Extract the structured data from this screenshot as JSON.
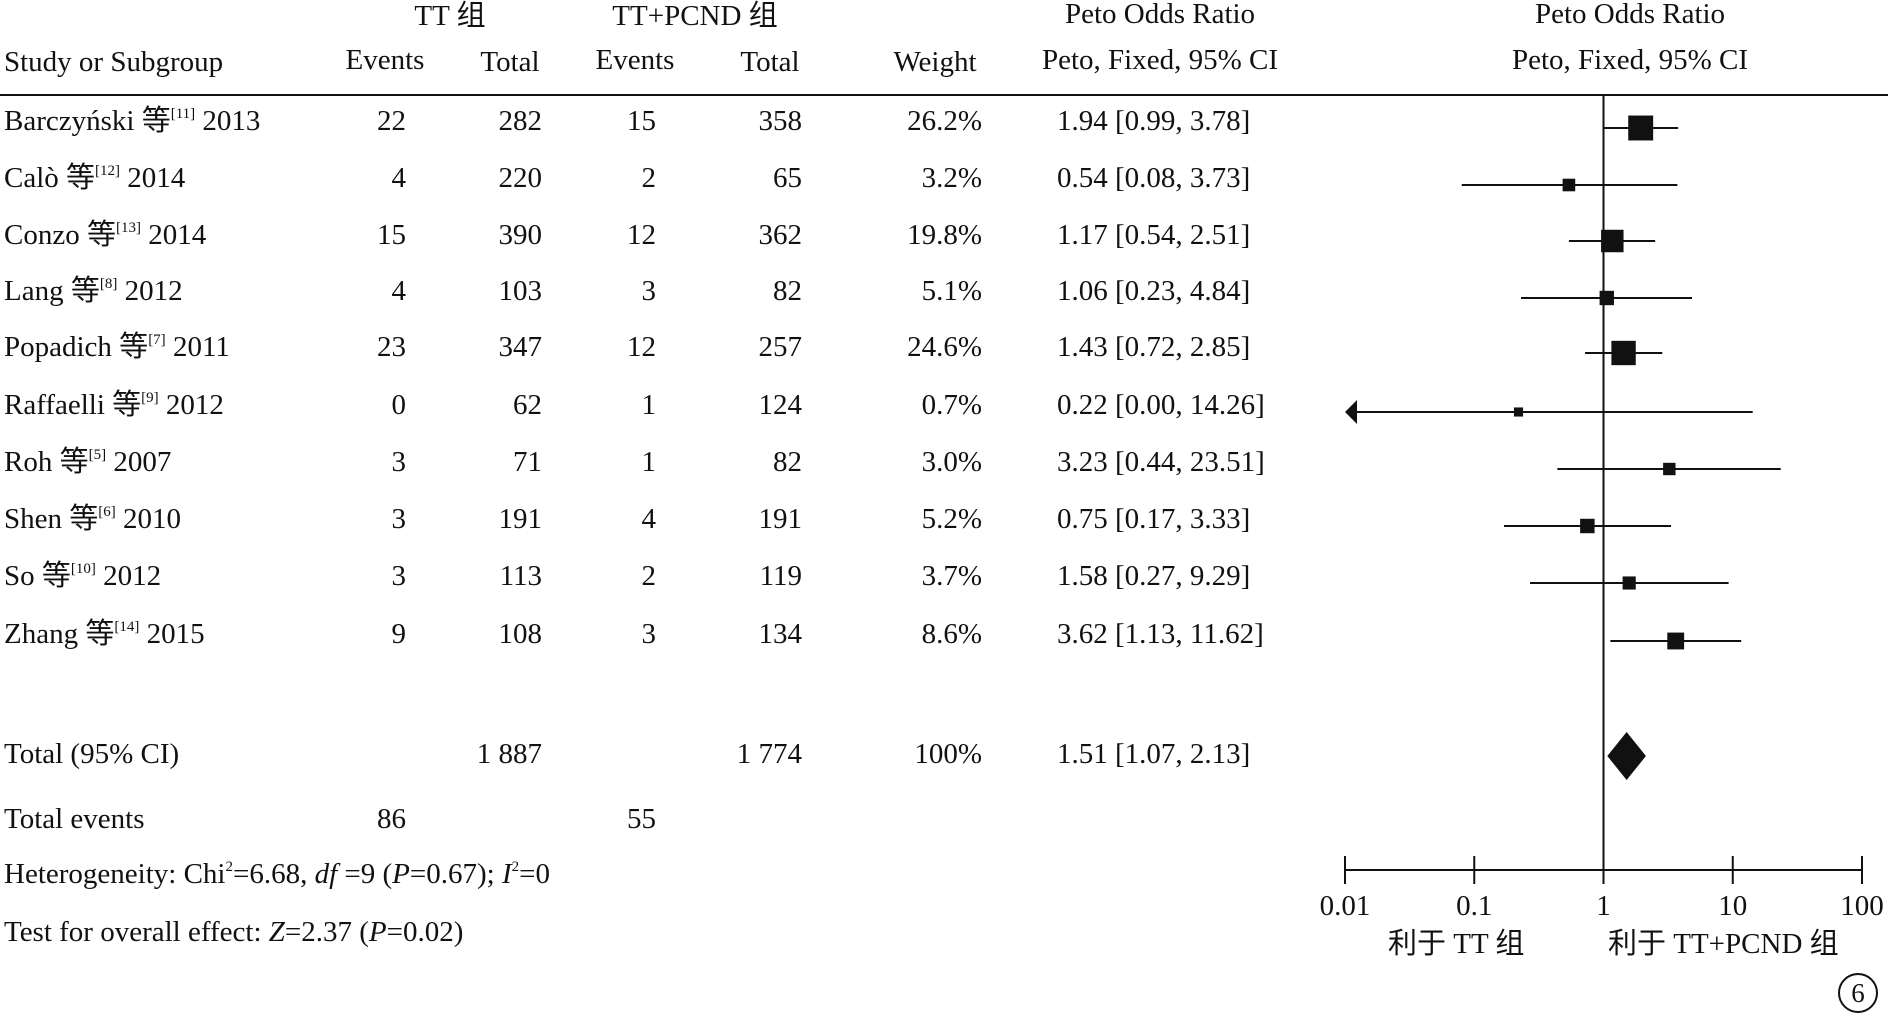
{
  "headers": {
    "group1": "TT 组",
    "group2": "TT+PCND 组",
    "or_col": "Peto Odds Ratio",
    "or_col_sub": "Peto, Fixed, 95% CI",
    "or_plot": "Peto Odds Ratio",
    "or_plot_sub": "Peto, Fixed, 95% CI",
    "study": "Study or Subgroup",
    "events1": "Events",
    "total1": "Total",
    "events2": "Events",
    "total2": "Total",
    "weight": "Weight"
  },
  "studies": [
    {
      "author": "Barczyński 等",
      "ref": "[11]",
      "year": "2013",
      "e1": "22",
      "t1": "282",
      "e2": "15",
      "t2": "358",
      "weight": "26.2%",
      "ci_text": "1.94 [0.99, 3.78]"
    },
    {
      "author": "Calò 等",
      "ref": "[12]",
      "year": "2014",
      "e1": "4",
      "t1": "220",
      "e2": "2",
      "t2": "65",
      "weight": "3.2%",
      "ci_text": "0.54 [0.08, 3.73]"
    },
    {
      "author": "Conzo 等",
      "ref": "[13]",
      "year": "2014",
      "e1": "15",
      "t1": "390",
      "e2": "12",
      "t2": "362",
      "weight": "19.8%",
      "ci_text": "1.17 [0.54, 2.51]"
    },
    {
      "author": "Lang 等",
      "ref": "[8]",
      "year": "2012",
      "e1": "4",
      "t1": "103",
      "e2": "3",
      "t2": "82",
      "weight": "5.1%",
      "ci_text": "1.06 [0.23, 4.84]"
    },
    {
      "author": "Popadich 等",
      "ref": "[7]",
      "year": "2011",
      "e1": "23",
      "t1": "347",
      "e2": "12",
      "t2": "257",
      "weight": "24.6%",
      "ci_text": "1.43 [0.72, 2.85]"
    },
    {
      "author": "Raffaelli 等",
      "ref": "[9]",
      "year": "2012",
      "e1": "0",
      "t1": "62",
      "e2": "1",
      "t2": "124",
      "weight": "0.7%",
      "ci_text": "0.22 [0.00, 14.26]"
    },
    {
      "author": "Roh 等",
      "ref": "[5]",
      "year": "2007",
      "e1": "3",
      "t1": "71",
      "e2": "1",
      "t2": "82",
      "weight": "3.0%",
      "ci_text": "3.23 [0.44, 23.51]"
    },
    {
      "author": "Shen 等",
      "ref": "[6]",
      "year": "2010",
      "e1": "3",
      "t1": "191",
      "e2": "4",
      "t2": "191",
      "weight": "5.2%",
      "ci_text": "0.75 [0.17, 3.33]"
    },
    {
      "author": "So 等",
      "ref": "[10]",
      "year": "2012",
      "e1": "3",
      "t1": "113",
      "e2": "2",
      "t2": "119",
      "weight": "3.7%",
      "ci_text": "1.58 [0.27, 9.29]"
    },
    {
      "author": "Zhang 等",
      "ref": "[14]",
      "year": "2015",
      "e1": "9",
      "t1": "108",
      "e2": "3",
      "t2": "134",
      "weight": "8.6%",
      "ci_text": "3.62 [1.13, 11.62]"
    }
  ],
  "total": {
    "label": "Total (95% CI)",
    "t1": "1 887",
    "t2": "1 774",
    "weight": "100%",
    "ci_text": "1.51 [1.07, 2.13]"
  },
  "total_events": {
    "label": "Total events",
    "e1": "86",
    "e2": "55"
  },
  "heterogeneity": {
    "p1": "Heterogeneity: Chi",
    "sup1": "2",
    "p2": "=6.68, ",
    "df": "df",
    "p3": " =9 (",
    "P": "P",
    "p4": "=0.67); ",
    "I": "I",
    "sup2": "2",
    "p5": "=0"
  },
  "overall": {
    "p1": "Test for overall effect: ",
    "Z": "Z",
    "p2": "=2.37 (",
    "P": "P",
    "p3": "=0.02)"
  },
  "axis_labels": {
    "favours_left": "利于 TT 组",
    "favours_right": "利于 TT+PCND 组"
  },
  "panel_label": "6",
  "chart_data": {
    "type": "forest",
    "scale": "log",
    "xlim": [
      0.01,
      100
    ],
    "ticks": [
      0.01,
      0.1,
      1,
      10,
      100
    ],
    "tick_labels": [
      "0.01",
      "0.1",
      "1",
      "10",
      "100"
    ],
    "studies": [
      {
        "or": 1.94,
        "lo": 0.99,
        "hi": 3.78,
        "weight": 26.2
      },
      {
        "or": 0.54,
        "lo": 0.08,
        "hi": 3.73,
        "weight": 3.2
      },
      {
        "or": 1.17,
        "lo": 0.54,
        "hi": 2.51,
        "weight": 19.8
      },
      {
        "or": 1.06,
        "lo": 0.23,
        "hi": 4.84,
        "weight": 5.1
      },
      {
        "or": 1.43,
        "lo": 0.72,
        "hi": 2.85,
        "weight": 24.6
      },
      {
        "or": 0.22,
        "lo": 0.0,
        "hi": 14.26,
        "weight": 0.7,
        "lower_truncated": true
      },
      {
        "or": 3.23,
        "lo": 0.44,
        "hi": 23.51,
        "weight": 3.0
      },
      {
        "or": 0.75,
        "lo": 0.17,
        "hi": 3.33,
        "weight": 5.2
      },
      {
        "or": 1.58,
        "lo": 0.27,
        "hi": 9.29,
        "weight": 3.7
      },
      {
        "or": 3.62,
        "lo": 1.13,
        "hi": 11.62,
        "weight": 8.6
      }
    ],
    "pooled": {
      "or": 1.51,
      "lo": 1.07,
      "hi": 2.13
    }
  }
}
